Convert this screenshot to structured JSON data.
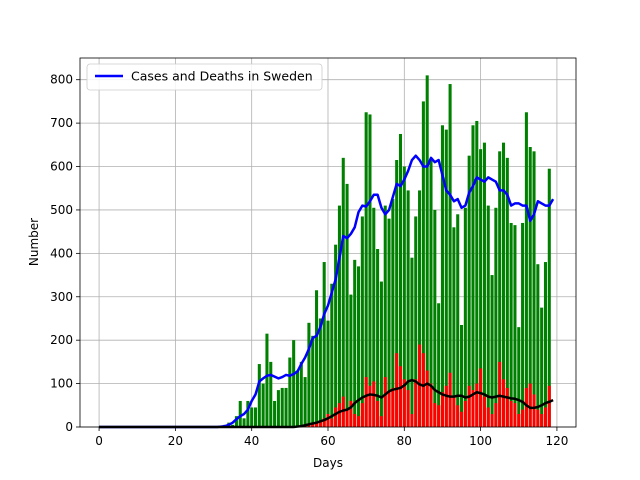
{
  "chart_data": {
    "type": "bar",
    "xlabel": "Days",
    "ylabel": "Number",
    "xlim": [
      -5,
      125
    ],
    "ylim": [
      0,
      850
    ],
    "xticks": [
      0,
      20,
      40,
      60,
      80,
      100,
      120
    ],
    "yticks": [
      0,
      100,
      200,
      300,
      400,
      500,
      600,
      700,
      800
    ],
    "grid": true,
    "legend": {
      "position": "top-left",
      "entries": [
        "Cases and Deaths in Sweden"
      ]
    },
    "colors": {
      "cases": "#008000",
      "deaths": "#ff0000",
      "cases_avg": "#0000ff",
      "deaths_avg": "#000000",
      "grid": "#b0b0b0"
    },
    "x": [
      0,
      1,
      2,
      3,
      4,
      5,
      6,
      7,
      8,
      9,
      10,
      11,
      12,
      13,
      14,
      15,
      16,
      17,
      18,
      19,
      20,
      21,
      22,
      23,
      24,
      25,
      26,
      27,
      28,
      29,
      30,
      31,
      32,
      33,
      34,
      35,
      36,
      37,
      38,
      39,
      40,
      41,
      42,
      43,
      44,
      45,
      46,
      47,
      48,
      49,
      50,
      51,
      52,
      53,
      54,
      55,
      56,
      57,
      58,
      59,
      60,
      61,
      62,
      63,
      64,
      65,
      66,
      67,
      68,
      69,
      70,
      71,
      72,
      73,
      74,
      75,
      76,
      77,
      78,
      79,
      80,
      81,
      82,
      83,
      84,
      85,
      86,
      87,
      88,
      89,
      90,
      91,
      92,
      93,
      94,
      95,
      96,
      97,
      98,
      99,
      100,
      101,
      102,
      103,
      104,
      105,
      106,
      107,
      108,
      109,
      110,
      111,
      112,
      113,
      114,
      115,
      116,
      117,
      118,
      119
    ],
    "series": [
      {
        "kind": "bar",
        "values": [
          1,
          0,
          0,
          0,
          0,
          0,
          0,
          0,
          0,
          0,
          0,
          0,
          0,
          0,
          0,
          0,
          0,
          0,
          0,
          0,
          0,
          0,
          0,
          0,
          0,
          0,
          0,
          0,
          0,
          0,
          0,
          0,
          1,
          5,
          10,
          5,
          25,
          60,
          20,
          60,
          45,
          45,
          145,
          100,
          215,
          150,
          60,
          85,
          90,
          90,
          160,
          200,
          130,
          150,
          115,
          240,
          210,
          315,
          250,
          380,
          245,
          330,
          420,
          510,
          620,
          560,
          305,
          385,
          370,
          485,
          725,
          720,
          505,
          410,
          335,
          510,
          480,
          525,
          615,
          675,
          600,
          545,
          390,
          485,
          545,
          750,
          810,
          615,
          500,
          285,
          695,
          685,
          790,
          460,
          490,
          235,
          505,
          625,
          695,
          705,
          640,
          655,
          510,
          350,
          505,
          635,
          655,
          620,
          470,
          465,
          230,
          470,
          725,
          645,
          635,
          375,
          275,
          380,
          595,
          0
        ]
      },
      {
        "kind": "bar",
        "values": [
          0,
          0,
          0,
          0,
          0,
          0,
          0,
          0,
          0,
          0,
          0,
          0,
          0,
          0,
          0,
          0,
          0,
          0,
          0,
          0,
          0,
          0,
          0,
          0,
          0,
          0,
          0,
          0,
          0,
          0,
          0,
          0,
          0,
          0,
          0,
          0,
          0,
          0,
          0,
          0,
          0,
          0,
          0,
          0,
          0,
          0,
          0,
          0,
          0,
          0,
          0,
          0,
          0,
          2,
          3,
          5,
          8,
          12,
          15,
          20,
          30,
          20,
          45,
          55,
          70,
          40,
          60,
          30,
          25,
          55,
          115,
          95,
          105,
          60,
          25,
          115,
          80,
          90,
          170,
          140,
          110,
          85,
          30,
          110,
          190,
          170,
          130,
          100,
          55,
          50,
          80,
          95,
          125,
          70,
          50,
          35,
          60,
          95,
          85,
          100,
          135,
          70,
          45,
          30,
          55,
          150,
          110,
          90,
          60,
          55,
          30,
          40,
          90,
          100,
          75,
          40,
          30,
          45,
          95,
          0
        ]
      },
      {
        "kind": "line",
        "values": [
          0,
          0,
          0,
          0,
          0,
          0,
          0,
          0,
          0,
          0,
          0,
          0,
          0,
          0,
          0,
          0,
          0,
          0,
          0,
          0,
          0,
          0,
          0,
          0,
          0,
          0,
          0,
          0,
          0,
          0,
          0,
          0,
          1,
          2,
          5,
          10,
          18,
          25,
          30,
          40,
          60,
          75,
          105,
          112,
          118,
          120,
          116,
          112,
          115,
          120,
          118,
          122,
          128,
          145,
          160,
          180,
          205,
          210,
          230,
          260,
          280,
          310,
          340,
          390,
          440,
          435,
          445,
          460,
          495,
          510,
          508,
          520,
          535,
          535,
          505,
          490,
          500,
          530,
          560,
          555,
          570,
          590,
          615,
          625,
          615,
          600,
          600,
          620,
          610,
          615,
          580,
          545,
          535,
          520,
          525,
          505,
          510,
          540,
          555,
          575,
          570,
          565,
          575,
          570,
          565,
          545,
          545,
          535,
          510,
          515,
          515,
          510,
          510,
          475,
          490,
          520,
          515,
          510,
          510,
          525
        ]
      },
      {
        "kind": "line",
        "values": [
          0,
          0,
          0,
          0,
          0,
          0,
          0,
          0,
          0,
          0,
          0,
          0,
          0,
          0,
          0,
          0,
          0,
          0,
          0,
          0,
          0,
          0,
          0,
          0,
          0,
          0,
          0,
          0,
          0,
          0,
          0,
          0,
          0,
          0,
          0,
          0,
          0,
          0,
          0,
          0,
          0,
          0,
          0,
          0,
          0,
          0,
          0,
          0,
          0,
          0,
          0,
          0,
          1,
          2,
          4,
          6,
          8,
          10,
          13,
          16,
          20,
          25,
          30,
          35,
          38,
          40,
          45,
          55,
          62,
          68,
          72,
          75,
          74,
          72,
          68,
          75,
          82,
          86,
          88,
          90,
          96,
          105,
          108,
          105,
          98,
          95,
          100,
          95,
          85,
          80,
          75,
          72,
          70,
          70,
          72,
          72,
          68,
          70,
          75,
          80,
          78,
          75,
          70,
          68,
          70,
          72,
          70,
          68,
          66,
          65,
          62,
          58,
          50,
          44,
          44,
          46,
          50,
          55,
          58,
          62
        ]
      }
    ]
  }
}
